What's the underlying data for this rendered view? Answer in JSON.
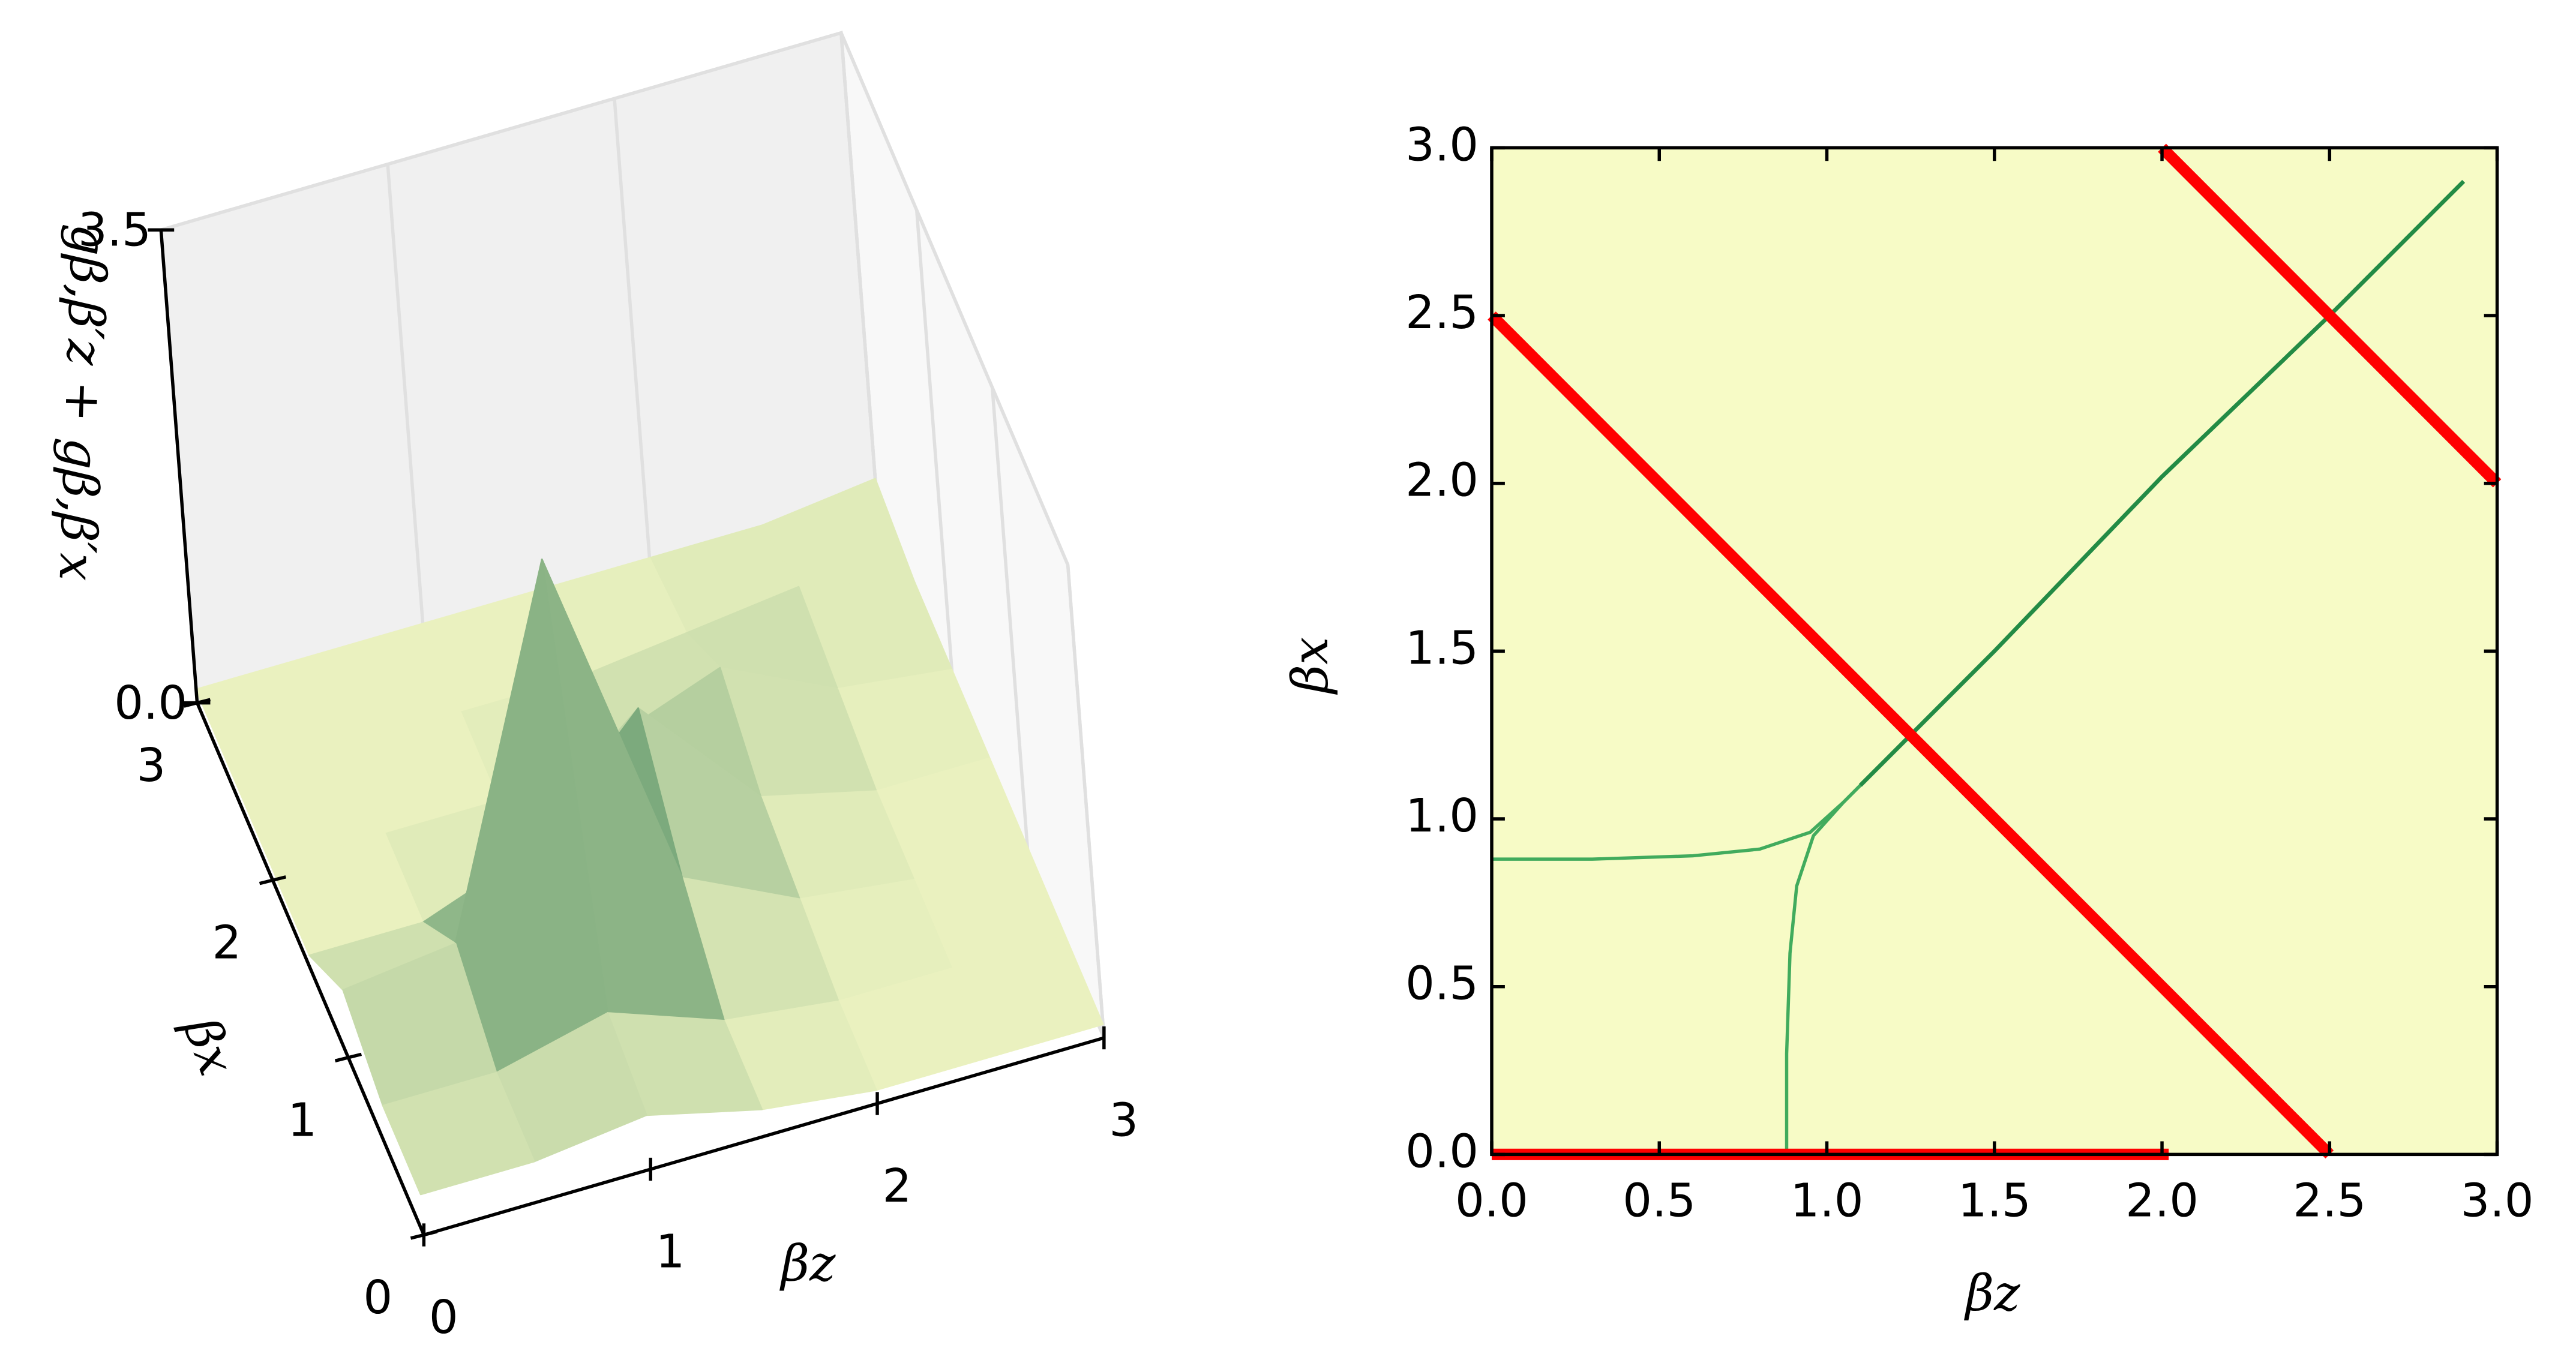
{
  "chart_data": [
    {
      "type": "surface3d",
      "xlabel": "βz",
      "ylabel": "βx",
      "zlabel": "gβ,β′z + gβ,β′x",
      "xlim": [
        0,
        3
      ],
      "ylim": [
        0,
        3
      ],
      "zlim": [
        0,
        3.5
      ],
      "xticks": [
        0,
        1,
        2,
        3
      ],
      "yticks": [
        0,
        1,
        2,
        3
      ],
      "zticks": [
        {
          "value": 0,
          "label": "0.0"
        },
        {
          "value": 3.5,
          "label": "3.5"
        }
      ],
      "colormap": [
        "#ffffcc",
        "#005a32"
      ],
      "x": [
        0,
        0.5,
        1,
        1.5,
        2,
        2.5,
        3
      ],
      "y": [
        0,
        0.5,
        1,
        1.5,
        2,
        2.5,
        3
      ],
      "z": [
        [
          0.3,
          0.3,
          0.4,
          0.2,
          0.1,
          0.1,
          0.1
        ],
        [
          0.3,
          0.3,
          0.5,
          0.2,
          0.1,
          0.1,
          0.1
        ],
        [
          0.5,
          0.6,
          3.2,
          0.6,
          0.2,
          0.1,
          0.1
        ],
        [
          0.1,
          0.1,
          0.4,
          1.2,
          0.3,
          0.1,
          0.1
        ],
        [
          0.1,
          0.1,
          0.1,
          0.3,
          0.6,
          0.2,
          0.1
        ],
        [
          0.1,
          0.1,
          0.1,
          0.1,
          0.2,
          0.3,
          0.1
        ],
        [
          0.1,
          0.1,
          0.1,
          0.1,
          0.1,
          0.1,
          0.2
        ]
      ]
    },
    {
      "type": "line",
      "xlabel": "βz",
      "ylabel": "βx",
      "xlim": [
        0,
        3
      ],
      "ylim": [
        0,
        3
      ],
      "xticks": [
        {
          "value": 0,
          "label": "0.0"
        },
        0.5,
        {
          "value": 1,
          "label": "1.0"
        },
        1.5,
        {
          "value": 2,
          "label": "2.0"
        },
        2.5,
        {
          "value": 3,
          "label": "3.0"
        }
      ],
      "yticks": [
        {
          "value": 0,
          "label": "0.0"
        },
        0.5,
        {
          "value": 1,
          "label": "1.0"
        },
        1.5,
        {
          "value": 2,
          "label": "2.0"
        },
        2.5,
        {
          "value": 3,
          "label": "3.0"
        }
      ],
      "background": "#f7fbc6",
      "series": [
        {
          "color": "#41ab5d",
          "width": 2,
          "x": [
            0,
            0.3,
            0.6,
            0.8,
            0.95,
            1.05,
            1.1
          ],
          "values": [
            0.88,
            0.88,
            0.89,
            0.91,
            0.96,
            1.05,
            1.1
          ]
        },
        {
          "color": "#41ab5d",
          "width": 2,
          "x": [
            0.88,
            0.88,
            0.89,
            0.91,
            0.96,
            1.05,
            1.1
          ],
          "values": [
            0,
            0.3,
            0.6,
            0.8,
            0.95,
            1.05,
            1.1
          ]
        },
        {
          "color": "#238b45",
          "width": 2.5,
          "x": [
            1.1,
            1.5,
            2,
            2.5,
            2.9
          ],
          "values": [
            1.1,
            1.5,
            2.02,
            2.5,
            2.9
          ]
        },
        {
          "color": "#ff0000",
          "width": 7,
          "x": [
            0,
            2.5
          ],
          "values": [
            2.5,
            0
          ]
        },
        {
          "color": "#ff0000",
          "width": 7,
          "x": [
            2,
            3
          ],
          "values": [
            3,
            2
          ]
        },
        {
          "color": "#ff0000",
          "width": 7,
          "x": [
            0,
            2.02
          ],
          "values": [
            0,
            0
          ]
        }
      ]
    }
  ]
}
